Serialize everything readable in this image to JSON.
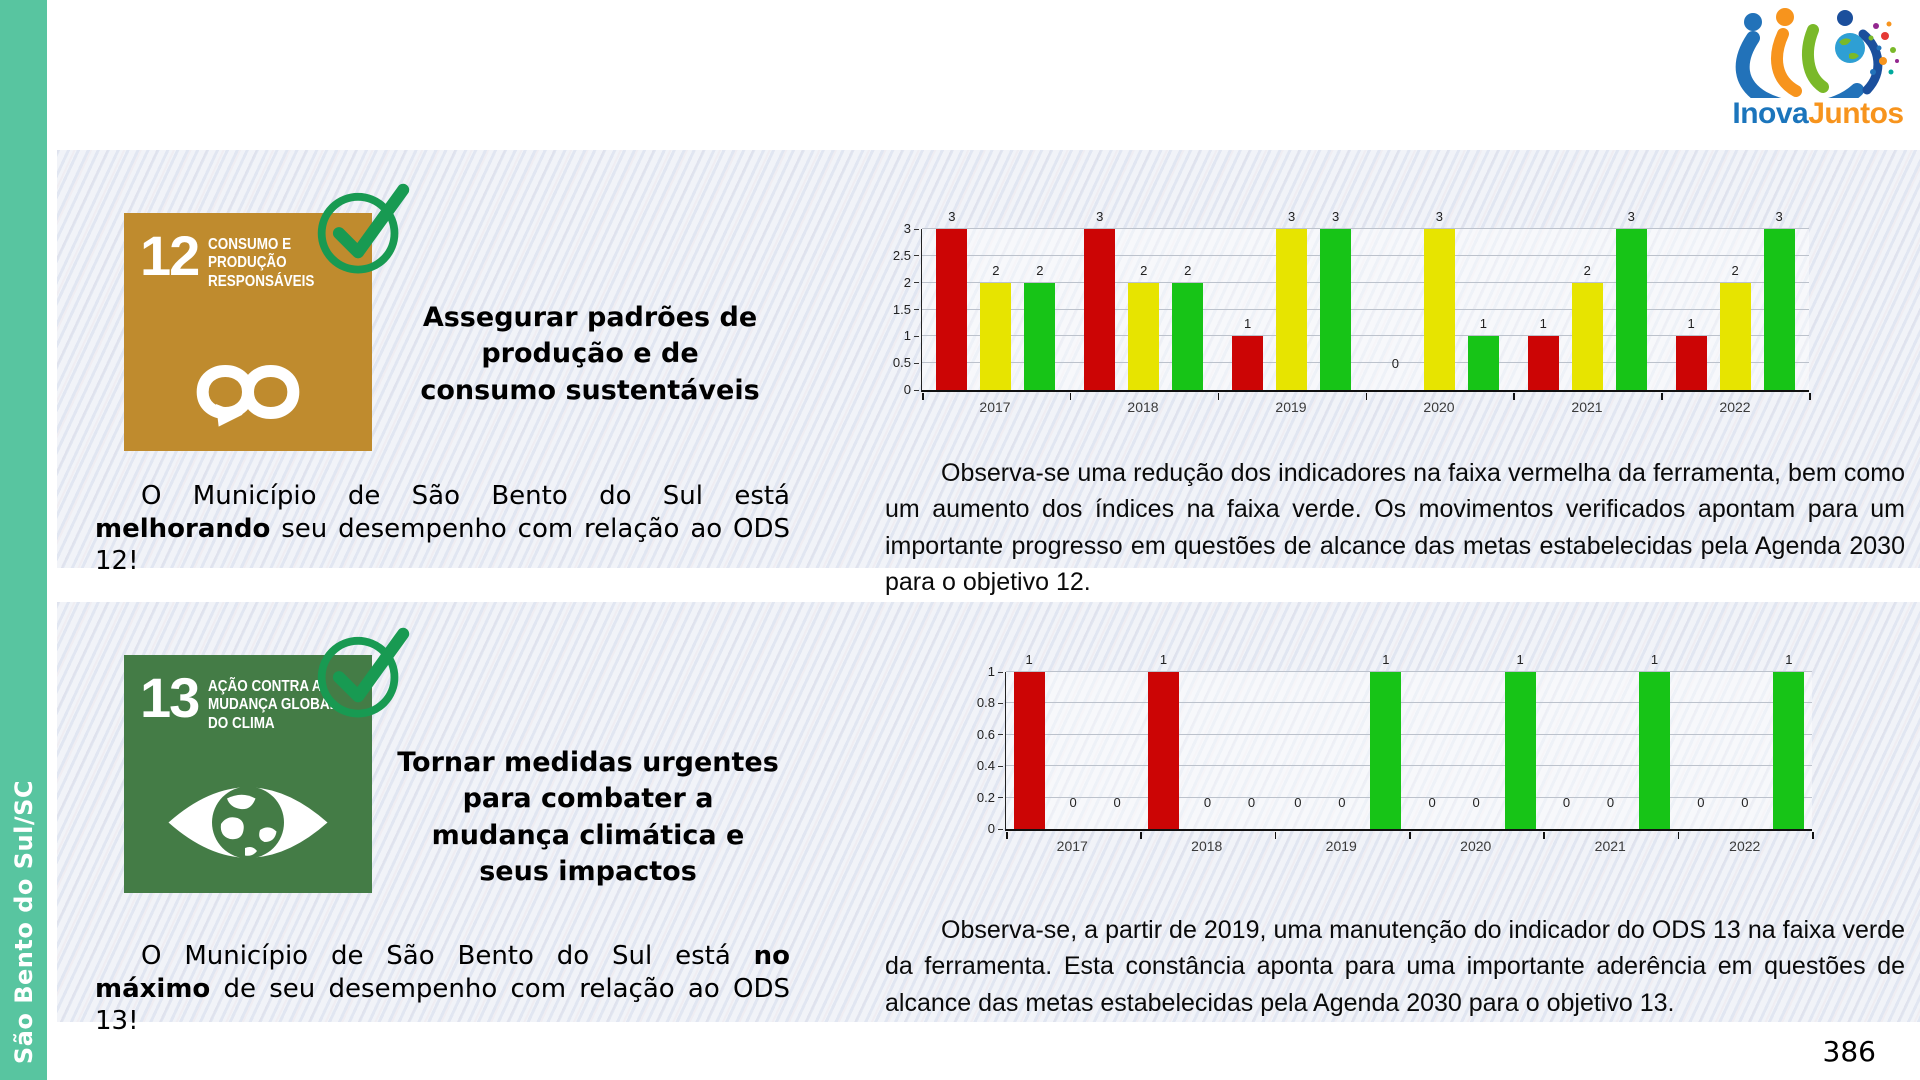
{
  "page": {
    "number": "386"
  },
  "sidebar": {
    "label": "São Bento do Sul/SC",
    "color": "#58C5A0"
  },
  "logo": {
    "name_part1": "Inova",
    "name_part2": "Juntos",
    "color1": "#1B75BC",
    "color2": "#F7941D"
  },
  "sections": [
    {
      "goal_number": "12",
      "goal_title_lines": [
        "CONSUMO E",
        "PRODUÇÃO",
        "RESPONSÁVEIS"
      ],
      "goal_color": "#BF8B2E",
      "goal_symbol": "infinity-icon",
      "check_color": "#189a52",
      "headline": "Assegurar padrões de produção e de consumo sustentáveis",
      "status": {
        "prefix": "O Município de São Bento do Sul está ",
        "highlight": "melhorando",
        "suffix": " seu desempenho com relação ao ODS 12!"
      },
      "observation": "Observa-se uma redução dos indicadores na faixa vermelha da ferramenta, bem como um aumento dos índices na faixa verde. Os movimentos verificados apontam para um importante progresso em questões de alcance das metas estabelecidas pela Agenda 2030 para o objetivo 12."
    },
    {
      "goal_number": "13",
      "goal_title_lines": [
        "AÇÃO CONTRA A",
        "MUDANÇA GLOBAL",
        "DO CLIMA"
      ],
      "goal_color": "#447C46",
      "goal_symbol": "eye-globe-icon",
      "check_color": "#189a52",
      "headline": "Tornar medidas urgentes para combater a mudança climática e seus impactos",
      "status": {
        "prefix": "O Município de São Bento do Sul está ",
        "highlight": "no máximo",
        "suffix": " de seu desempenho com relação ao ODS 13!"
      },
      "observation": "Observa-se, a partir de 2019, uma manutenção do indicador do ODS 13 na faixa verde da ferramenta. Esta constância aponta para uma importante aderência em questões de alcance das metas estabelecidas pela Agenda 2030 para o objetivo 13."
    }
  ],
  "chart_data": [
    {
      "type": "bar",
      "title": "",
      "categories": [
        "2017",
        "2018",
        "2019",
        "2020",
        "2021",
        "2022"
      ],
      "series": [
        {
          "name": "faixa vermelha",
          "color": "#CC0505",
          "values": [
            3,
            3,
            1,
            0,
            1,
            1
          ]
        },
        {
          "name": "faixa amarela",
          "color": "#E7E400",
          "values": [
            2,
            2,
            3,
            3,
            2,
            2
          ]
        },
        {
          "name": "faixa verde",
          "color": "#17C417",
          "values": [
            2,
            2,
            3,
            1,
            3,
            3
          ]
        }
      ],
      "ylim": [
        0,
        3
      ],
      "yticks": [
        0,
        0.5,
        1,
        1.5,
        2,
        2.5,
        3
      ],
      "grid": true,
      "value_labels": true,
      "legend": "none"
    },
    {
      "type": "bar",
      "title": "",
      "categories": [
        "2017",
        "2018",
        "2019",
        "2020",
        "2021",
        "2022"
      ],
      "series": [
        {
          "name": "faixa vermelha",
          "color": "#CC0505",
          "values": [
            1,
            1,
            0,
            0,
            0,
            0
          ]
        },
        {
          "name": "faixa amarela",
          "color": "#E7E400",
          "values": [
            0,
            0,
            0,
            0,
            0,
            0
          ]
        },
        {
          "name": "faixa verde",
          "color": "#17C417",
          "values": [
            0,
            0,
            1,
            1,
            1,
            1
          ]
        }
      ],
      "ylim": [
        0,
        1
      ],
      "yticks": [
        0,
        0.2,
        0.4,
        0.6,
        0.8,
        1
      ],
      "grid": true,
      "value_labels": true,
      "legend": "none"
    }
  ]
}
